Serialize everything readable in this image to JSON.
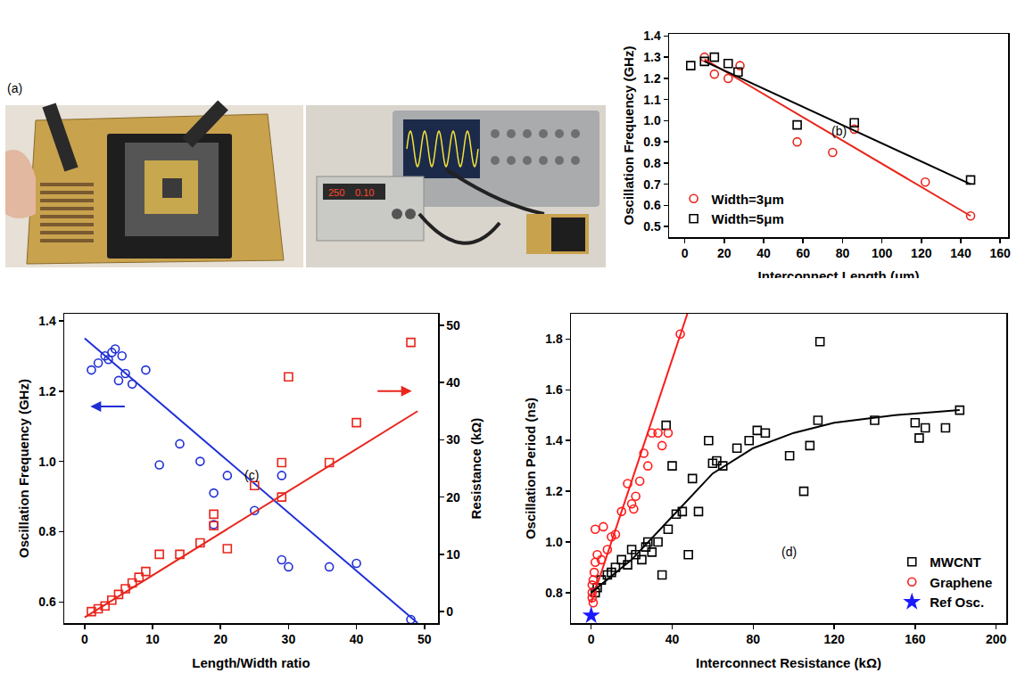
{
  "photo": {
    "panel_label": "(a)",
    "display": [
      "250",
      "0.10"
    ]
  },
  "chart_data": [
    {
      "panel_label": "(b)",
      "type": "scatter",
      "x_label": "Interconnect Length (μm)",
      "y_label": "Oscillation Frequency (GHz)",
      "xlim": [
        -8,
        164
      ],
      "xticks": [
        0,
        20,
        40,
        60,
        80,
        100,
        120,
        140,
        160
      ],
      "ylim": [
        0.45,
        1.41
      ],
      "yticks": [
        0.5,
        0.6,
        0.7,
        0.8,
        0.9,
        {
          "value": 1,
          "label": "1.0"
        },
        1.1,
        1.2,
        1.3,
        1.4
      ],
      "grid": false,
      "legend": "bottom left",
      "series": [
        {
          "name": "Width=3μm",
          "color": "#e8261c",
          "marker": "circle-open",
          "x": [
            10,
            15,
            22,
            28,
            57,
            75,
            86,
            122,
            145
          ],
          "values": [
            1.3,
            1.22,
            1.2,
            1.26,
            0.9,
            0.85,
            0.96,
            0.71,
            0.55
          ]
        },
        {
          "name": "Width=5μm",
          "color": "#000000",
          "marker": "square-open",
          "x": [
            3,
            10,
            15,
            22,
            27,
            57,
            86,
            145
          ],
          "values": [
            1.26,
            1.28,
            1.3,
            1.27,
            1.23,
            0.98,
            0.99,
            0.72
          ]
        },
        {
          "type": "line",
          "color": "#e8261c",
          "line_style": "solid",
          "x": [
            10,
            145
          ],
          "values": [
            1.29,
            0.55
          ]
        },
        {
          "type": "line",
          "color": "#000000",
          "line_style": "solid",
          "x": [
            10,
            145
          ],
          "values": [
            1.28,
            0.7
          ]
        }
      ]
    },
    {
      "panel_label": "(c)",
      "type": "scatter",
      "x_label": "Length/Width ratio",
      "y_label": "Oscillation Frequency (GHz)",
      "y2_label": "Resistance (kΩ)",
      "xlim": [
        -3,
        52
      ],
      "xticks": [
        0,
        10,
        20,
        30,
        40,
        50
      ],
      "ylim": [
        0.54,
        1.42
      ],
      "yticks": [
        0.6,
        0.8,
        {
          "value": 1,
          "label": "1.0"
        },
        1.2,
        1.4
      ],
      "y2lim": [
        -2,
        52
      ],
      "y2ticks": [
        0,
        10,
        20,
        30,
        40,
        50
      ],
      "grid": false,
      "series": [
        {
          "color": "#1f2fd6",
          "marker": "circle-open",
          "x": [
            1,
            2,
            3,
            3.5,
            4,
            4.5,
            5,
            5.5,
            6,
            7,
            9,
            11,
            14,
            17,
            19,
            19,
            21,
            25,
            29,
            29,
            30,
            36,
            40,
            48
          ],
          "values": [
            1.26,
            1.28,
            1.3,
            1.29,
            1.31,
            1.32,
            1.23,
            1.3,
            1.25,
            1.22,
            1.26,
            0.99,
            1.05,
            1.0,
            0.82,
            0.91,
            0.96,
            0.86,
            0.96,
            0.72,
            0.7,
            0.7,
            0.71,
            0.55
          ]
        },
        {
          "color": "#e8261c",
          "marker": "square-open",
          "axis": "y2",
          "x": [
            1,
            2,
            3,
            4,
            5,
            6,
            7,
            8,
            9,
            11,
            14,
            17,
            19,
            19,
            21,
            25,
            29,
            29,
            30,
            36,
            40,
            48
          ],
          "values": [
            0,
            0.5,
            1,
            2,
            3,
            4,
            5,
            6,
            7,
            10,
            10,
            12,
            15,
            17,
            11,
            22,
            20,
            26,
            41,
            26,
            33,
            47
          ]
        },
        {
          "type": "line",
          "color": "#1f2fd6",
          "line_style": "solid",
          "x": [
            0,
            49
          ],
          "values": [
            1.35,
            0.54
          ]
        },
        {
          "type": "line",
          "color": "#e8261c",
          "line_style": "solid",
          "axis": "y2",
          "x": [
            0,
            49
          ],
          "values": [
            -1,
            35
          ]
        }
      ]
    },
    {
      "panel_label": "(d)",
      "type": "scatter",
      "x_label": "Interconnect Resistance (kΩ)",
      "y_label": "Oscillation Period (ns)",
      "xlim": [
        -10,
        205
      ],
      "xticks": [
        0,
        40,
        80,
        120,
        160,
        200
      ],
      "ylim": [
        0.68,
        1.9
      ],
      "yticks": [
        0.8,
        {
          "value": 1,
          "label": "1.0"
        },
        1.2,
        1.4,
        1.6,
        1.8
      ],
      "grid": false,
      "legend": "bottom right",
      "series": [
        {
          "name": "MWCNT",
          "color": "#000000",
          "marker": "square-open",
          "x": [
            2,
            3,
            5,
            8,
            10,
            12,
            15,
            18,
            20,
            22,
            25,
            27,
            28,
            30,
            33,
            35,
            37,
            38,
            40,
            42,
            45,
            48,
            50,
            53,
            58,
            60,
            62,
            65,
            72,
            78,
            82,
            86,
            98,
            105,
            108,
            112,
            113,
            140,
            160,
            162,
            165,
            175,
            182
          ],
          "values": [
            0.8,
            0.82,
            0.85,
            0.87,
            0.88,
            0.9,
            0.93,
            0.91,
            0.97,
            0.95,
            0.93,
            0.98,
            1.0,
            0.96,
            1.0,
            0.87,
            1.46,
            1.05,
            1.3,
            1.11,
            1.12,
            0.95,
            1.25,
            1.12,
            1.4,
            1.31,
            1.32,
            1.3,
            1.37,
            1.4,
            1.44,
            1.43,
            1.34,
            1.2,
            1.38,
            1.48,
            1.79,
            1.48,
            1.47,
            1.41,
            1.45,
            1.45,
            1.52
          ]
        },
        {
          "name": "Graphene",
          "color": "#ff1a1a",
          "marker": "circle-open",
          "x": [
            0.5,
            0.5,
            0.5,
            1,
            1,
            1.5,
            2,
            2,
            3,
            5,
            6,
            8,
            10,
            12,
            15,
            18,
            20,
            21,
            22,
            24,
            26,
            28,
            30,
            33,
            35,
            38,
            44
          ],
          "values": [
            0.78,
            0.8,
            0.83,
            0.76,
            0.85,
            0.88,
            0.92,
            1.05,
            0.95,
            0.93,
            1.06,
            0.97,
            1.02,
            1.03,
            1.12,
            1.23,
            1.15,
            1.13,
            1.18,
            1.24,
            1.35,
            1.3,
            1.43,
            1.43,
            1.38,
            1.43,
            1.82
          ]
        },
        {
          "name": "Ref Osc.",
          "color": "#1a1aff",
          "marker": "star",
          "x": [
            0
          ],
          "values": [
            0.71
          ]
        },
        {
          "type": "line",
          "color": "#ff1a1a",
          "line_style": "solid",
          "x": [
            0,
            47.5
          ],
          "values": [
            0.76,
            1.9
          ]
        },
        {
          "type": "line",
          "color": "#000000",
          "line_style": "solid",
          "x": [
            0,
            20,
            40,
            60,
            80,
            100,
            120,
            150,
            182
          ],
          "values": [
            0.8,
            0.93,
            1.1,
            1.27,
            1.37,
            1.43,
            1.47,
            1.5,
            1.52
          ]
        }
      ]
    }
  ]
}
